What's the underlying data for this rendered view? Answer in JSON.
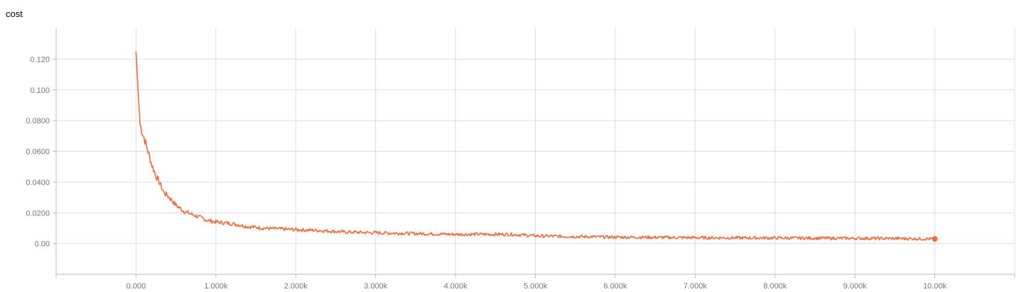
{
  "card": {
    "title": "cost"
  },
  "chart_data": {
    "type": "line",
    "title": "cost",
    "xlabel": "",
    "ylabel": "",
    "xlim": [
      -1000,
      11000
    ],
    "ylim": [
      -0.02,
      0.14
    ],
    "x_ticks": [
      0,
      1000,
      2000,
      3000,
      4000,
      5000,
      6000,
      7000,
      8000,
      9000,
      10000
    ],
    "x_tick_labels": [
      "0.000",
      "1.000k",
      "2.000k",
      "3.000k",
      "4.000k",
      "5.000k",
      "6.000k",
      "7.000k",
      "8.000k",
      "9.000k",
      "10.00k"
    ],
    "y_ticks": [
      0,
      0.02,
      0.04,
      0.06,
      0.08,
      0.1,
      0.12
    ],
    "y_tick_labels": [
      "0.00",
      "0.0200",
      "0.0400",
      "0.0600",
      "0.0800",
      "0.100",
      "0.120"
    ],
    "grid": true,
    "colors": {
      "line": "#f26b3a",
      "grid": "#dddddd",
      "axis": "#bbbbbb"
    },
    "series": [
      {
        "x": [
          0,
          20,
          50,
          80,
          100,
          150,
          200,
          250,
          300,
          350,
          400,
          450,
          500,
          600,
          700,
          800,
          900,
          1000,
          1200,
          1400,
          1600,
          1800,
          2000,
          2300,
          2600,
          3000,
          3500,
          4000,
          4500,
          4700,
          5000,
          5500,
          6000,
          6500,
          7000,
          7500,
          8000,
          8500,
          9000,
          9500,
          10000
        ],
        "values": [
          0.125,
          0.105,
          0.078,
          0.072,
          0.069,
          0.06,
          0.051,
          0.044,
          0.039,
          0.033,
          0.031,
          0.028,
          0.025,
          0.021,
          0.019,
          0.017,
          0.015,
          0.014,
          0.013,
          0.011,
          0.01,
          0.0095,
          0.009,
          0.0085,
          0.0075,
          0.007,
          0.0065,
          0.006,
          0.006,
          0.006,
          0.005,
          0.0045,
          0.0042,
          0.004,
          0.0038,
          0.0037,
          0.0036,
          0.0035,
          0.0034,
          0.0033,
          0.003
        ]
      }
    ]
  }
}
